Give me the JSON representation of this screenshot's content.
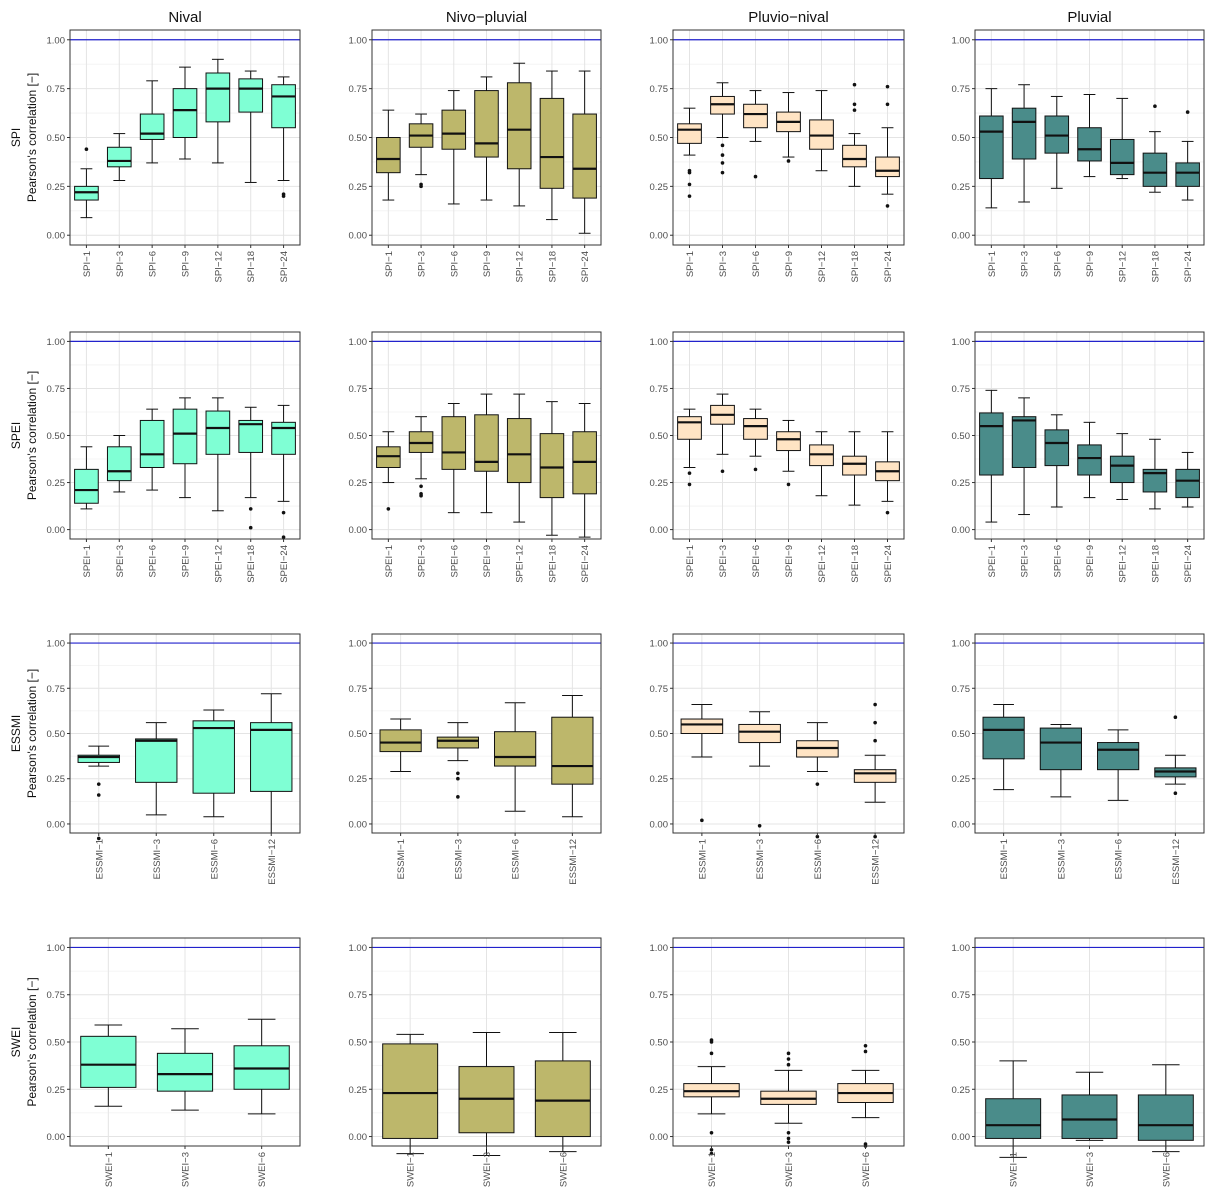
{
  "chart_data": {
    "type": "box",
    "layout": "facet grid, 4 rows (index families) x 4 columns (regimes)",
    "columns": [
      "Nival",
      "Nivo−pluvial",
      "Pluvio−nival",
      "Pluvial"
    ],
    "rows": [
      {
        "label": "SPI",
        "ylabel": "Pearson's correlation [−]"
      },
      {
        "label": "SPEI",
        "ylabel": "Pearson's correlation [−]"
      },
      {
        "label": "ESSMI",
        "ylabel": "Pearson's correlation [−]"
      },
      {
        "label": "SWEI",
        "ylabel": "Pearson's correlation [−]"
      }
    ],
    "ylim": [
      -0.05,
      1.05
    ],
    "yticks": [
      "0.00",
      "0.25",
      "0.50",
      "0.75",
      "1.00"
    ],
    "reference_line": {
      "y": 1.0,
      "color": "#2222cc"
    },
    "grid": true,
    "colors": {
      "Nival": "#7fffd4",
      "Nivo−pluvial": "#bdb76b",
      "Pluvio−nival": "#ffe4c4",
      "Pluvial": "#4a8c8a"
    },
    "panels": [
      [
        {
          "categories": [
            "SPI−1",
            "SPI−3",
            "SPI−6",
            "SPI−9",
            "SPI−12",
            "SPI−18",
            "SPI−24"
          ],
          "boxes": [
            [
              0.09,
              0.18,
              0.22,
              0.25,
              0.34
            ],
            [
              0.28,
              0.35,
              0.38,
              0.45,
              0.52
            ],
            [
              0.37,
              0.49,
              0.52,
              0.62,
              0.79
            ],
            [
              0.39,
              0.5,
              0.64,
              0.75,
              0.86
            ],
            [
              0.37,
              0.58,
              0.75,
              0.83,
              0.9
            ],
            [
              0.27,
              0.63,
              0.75,
              0.8,
              0.84
            ],
            [
              0.28,
              0.55,
              0.71,
              0.77,
              0.81
            ]
          ],
          "outliers": [
            [
              0.44
            ],
            [],
            [],
            [],
            [],
            [],
            [
              0.21,
              0.2
            ]
          ]
        },
        {
          "categories": [
            "SPI−1",
            "SPI−3",
            "SPI−6",
            "SPI−9",
            "SPI−12",
            "SPI−18",
            "SPI−24"
          ],
          "boxes": [
            [
              0.18,
              0.32,
              0.39,
              0.5,
              0.64
            ],
            [
              0.31,
              0.45,
              0.51,
              0.57,
              0.62
            ],
            [
              0.16,
              0.44,
              0.52,
              0.64,
              0.74
            ],
            [
              0.18,
              0.4,
              0.47,
              0.74,
              0.81
            ],
            [
              0.15,
              0.34,
              0.54,
              0.78,
              0.88
            ],
            [
              0.08,
              0.24,
              0.4,
              0.7,
              0.84
            ],
            [
              0.01,
              0.19,
              0.34,
              0.62,
              0.84
            ]
          ],
          "outliers": [
            [],
            [
              0.26,
              0.25
            ],
            [],
            [],
            [],
            [],
            []
          ]
        },
        {
          "categories": [
            "SPI−1",
            "SPI−3",
            "SPI−6",
            "SPI−9",
            "SPI−12",
            "SPI−18",
            "SPI−24"
          ],
          "boxes": [
            [
              0.41,
              0.47,
              0.54,
              0.57,
              0.65
            ],
            [
              0.5,
              0.62,
              0.67,
              0.71,
              0.78
            ],
            [
              0.48,
              0.55,
              0.62,
              0.67,
              0.74
            ],
            [
              0.4,
              0.53,
              0.58,
              0.63,
              0.73
            ],
            [
              0.33,
              0.44,
              0.51,
              0.59,
              0.74
            ],
            [
              0.25,
              0.35,
              0.39,
              0.46,
              0.52
            ],
            [
              0.21,
              0.3,
              0.33,
              0.4,
              0.55
            ]
          ],
          "outliers": [
            [
              0.33,
              0.32,
              0.26,
              0.2
            ],
            [
              0.46,
              0.41,
              0.37,
              0.32
            ],
            [
              0.3
            ],
            [
              0.38
            ],
            [],
            [
              0.77,
              0.67,
              0.64
            ],
            [
              0.76,
              0.67,
              0.15
            ]
          ]
        },
        {
          "categories": [
            "SPI−1",
            "SPI−3",
            "SPI−6",
            "SPI−9",
            "SPI−12",
            "SPI−18",
            "SPI−24"
          ],
          "boxes": [
            [
              0.14,
              0.29,
              0.53,
              0.61,
              0.75
            ],
            [
              0.17,
              0.39,
              0.58,
              0.65,
              0.77
            ],
            [
              0.24,
              0.42,
              0.51,
              0.61,
              0.71
            ],
            [
              0.3,
              0.38,
              0.44,
              0.55,
              0.72
            ],
            [
              0.29,
              0.31,
              0.37,
              0.49,
              0.7
            ],
            [
              0.22,
              0.25,
              0.32,
              0.42,
              0.53
            ],
            [
              0.18,
              0.25,
              0.32,
              0.37,
              0.48
            ]
          ],
          "outliers": [
            [],
            [],
            [],
            [],
            [],
            [
              0.66
            ],
            [
              0.63
            ]
          ]
        }
      ],
      [
        {
          "categories": [
            "SPEI−1",
            "SPEI−3",
            "SPEI−6",
            "SPEI−9",
            "SPEI−12",
            "SPEI−18",
            "SPEI−24"
          ],
          "boxes": [
            [
              0.11,
              0.14,
              0.21,
              0.32,
              0.44
            ],
            [
              0.2,
              0.26,
              0.31,
              0.44,
              0.5
            ],
            [
              0.21,
              0.33,
              0.4,
              0.58,
              0.64
            ],
            [
              0.17,
              0.35,
              0.51,
              0.64,
              0.7
            ],
            [
              0.1,
              0.4,
              0.54,
              0.63,
              0.7
            ],
            [
              0.17,
              0.41,
              0.56,
              0.58,
              0.65
            ],
            [
              0.15,
              0.4,
              0.54,
              0.57,
              0.66
            ]
          ],
          "outliers": [
            [],
            [],
            [],
            [],
            [],
            [
              0.11,
              0.01
            ],
            [
              0.09,
              -0.04
            ]
          ]
        },
        {
          "categories": [
            "SPEI−1",
            "SPEI−3",
            "SPEI−6",
            "SPEI−9",
            "SPEI−12",
            "SPEI−18",
            "SPEI−24"
          ],
          "boxes": [
            [
              0.25,
              0.33,
              0.39,
              0.44,
              0.52
            ],
            [
              0.27,
              0.41,
              0.46,
              0.52,
              0.6
            ],
            [
              0.09,
              0.32,
              0.41,
              0.6,
              0.67
            ],
            [
              0.09,
              0.31,
              0.36,
              0.61,
              0.72
            ],
            [
              0.04,
              0.25,
              0.4,
              0.59,
              0.72
            ],
            [
              -0.03,
              0.17,
              0.33,
              0.51,
              0.68
            ],
            [
              -0.04,
              0.19,
              0.36,
              0.52,
              0.67
            ]
          ],
          "outliers": [
            [
              0.11
            ],
            [
              0.23,
              0.19,
              0.18
            ],
            [],
            [],
            [],
            [],
            []
          ]
        },
        {
          "categories": [
            "SPEI−1",
            "SPEI−3",
            "SPEI−6",
            "SPEI−9",
            "SPEI−12",
            "SPEI−18",
            "SPEI−24"
          ],
          "boxes": [
            [
              0.33,
              0.48,
              0.57,
              0.6,
              0.64
            ],
            [
              0.4,
              0.56,
              0.61,
              0.66,
              0.72
            ],
            [
              0.39,
              0.48,
              0.55,
              0.59,
              0.64
            ],
            [
              0.31,
              0.42,
              0.48,
              0.52,
              0.58
            ],
            [
              0.18,
              0.34,
              0.4,
              0.45,
              0.52
            ],
            [
              0.13,
              0.29,
              0.35,
              0.39,
              0.52
            ],
            [
              0.15,
              0.26,
              0.31,
              0.36,
              0.52
            ]
          ],
          "outliers": [
            [
              0.3,
              0.24
            ],
            [
              0.31
            ],
            [
              0.32
            ],
            [
              0.24
            ],
            [],
            [],
            [
              0.09
            ]
          ]
        },
        {
          "categories": [
            "SPEI−1",
            "SPEI−3",
            "SPEI−6",
            "SPEI−9",
            "SPEI−12",
            "SPEI−18",
            "SPEI−24"
          ],
          "boxes": [
            [
              0.04,
              0.29,
              0.55,
              0.62,
              0.74
            ],
            [
              0.08,
              0.33,
              0.58,
              0.6,
              0.7
            ],
            [
              0.12,
              0.34,
              0.46,
              0.53,
              0.61
            ],
            [
              0.17,
              0.29,
              0.38,
              0.45,
              0.57
            ],
            [
              0.16,
              0.25,
              0.34,
              0.39,
              0.51
            ],
            [
              0.11,
              0.2,
              0.3,
              0.32,
              0.48
            ],
            [
              0.12,
              0.17,
              0.26,
              0.32,
              0.41
            ]
          ],
          "outliers": [
            [],
            [],
            [],
            [],
            [],
            [],
            []
          ]
        }
      ],
      [
        {
          "categories": [
            "ESSMI−1",
            "ESSMI−3",
            "ESSMI−6",
            "ESSMI−12"
          ],
          "boxes": [
            [
              0.32,
              0.34,
              0.37,
              0.38,
              0.43
            ],
            [
              0.05,
              0.23,
              0.46,
              0.47,
              0.56
            ],
            [
              0.04,
              0.17,
              0.53,
              0.57,
              0.63
            ],
            [
              -0.05,
              0.18,
              0.52,
              0.56,
              0.72
            ]
          ],
          "outliers": [
            [
              0.22,
              0.16,
              -0.08
            ],
            [],
            [],
            []
          ]
        },
        {
          "categories": [
            "ESSMI−1",
            "ESSMI−3",
            "ESSMI−6",
            "ESSMI−12"
          ],
          "boxes": [
            [
              0.29,
              0.4,
              0.45,
              0.52,
              0.58
            ],
            [
              0.35,
              0.42,
              0.46,
              0.48,
              0.56
            ],
            [
              0.07,
              0.32,
              0.37,
              0.51,
              0.67
            ],
            [
              0.04,
              0.22,
              0.32,
              0.59,
              0.71
            ]
          ],
          "outliers": [
            [],
            [
              0.28,
              0.25,
              0.15
            ],
            [],
            []
          ]
        },
        {
          "categories": [
            "ESSMI−1",
            "ESSMI−3",
            "ESSMI−6",
            "ESSMI−12"
          ],
          "boxes": [
            [
              0.37,
              0.5,
              0.55,
              0.58,
              0.66
            ],
            [
              0.32,
              0.45,
              0.51,
              0.55,
              0.62
            ],
            [
              0.29,
              0.37,
              0.42,
              0.46,
              0.56
            ],
            [
              0.12,
              0.23,
              0.28,
              0.3,
              0.38
            ]
          ],
          "outliers": [
            [
              0.02
            ],
            [
              -0.01
            ],
            [
              0.22,
              -0.07
            ],
            [
              0.66,
              0.56,
              0.46,
              -0.07
            ]
          ]
        },
        {
          "categories": [
            "ESSMI−1",
            "ESSMI−3",
            "ESSMI−6",
            "ESSMI−12"
          ],
          "boxes": [
            [
              0.19,
              0.36,
              0.52,
              0.59,
              0.66
            ],
            [
              0.15,
              0.3,
              0.45,
              0.53,
              0.55
            ],
            [
              0.13,
              0.3,
              0.41,
              0.45,
              0.52
            ],
            [
              0.22,
              0.26,
              0.29,
              0.31,
              0.38
            ]
          ],
          "outliers": [
            [],
            [],
            [],
            [
              0.59,
              0.17
            ]
          ]
        }
      ],
      [
        {
          "categories": [
            "SWEI−1",
            "SWEI−3",
            "SWEI−6"
          ],
          "boxes": [
            [
              0.16,
              0.26,
              0.38,
              0.53,
              0.59
            ],
            [
              0.14,
              0.24,
              0.33,
              0.44,
              0.57
            ],
            [
              0.12,
              0.25,
              0.36,
              0.48,
              0.62
            ]
          ],
          "outliers": [
            [],
            [],
            []
          ]
        },
        {
          "categories": [
            "SWEI−1",
            "SWEI−3",
            "SWEI−6"
          ],
          "boxes": [
            [
              -0.09,
              -0.01,
              0.23,
              0.49,
              0.54
            ],
            [
              -0.1,
              0.02,
              0.2,
              0.37,
              0.55
            ],
            [
              -0.08,
              0.0,
              0.19,
              0.4,
              0.55
            ]
          ],
          "outliers": [
            [],
            [],
            []
          ]
        },
        {
          "categories": [
            "SWEI−1",
            "SWEI−3",
            "SWEI−6"
          ],
          "boxes": [
            [
              0.12,
              0.21,
              0.24,
              0.28,
              0.37
            ],
            [
              0.07,
              0.17,
              0.2,
              0.24,
              0.35
            ],
            [
              0.1,
              0.18,
              0.23,
              0.28,
              0.35
            ]
          ],
          "outliers": [
            [
              0.51,
              0.5,
              0.44,
              0.02,
              -0.07,
              -0.09
            ],
            [
              0.44,
              0.41,
              0.38,
              0.02,
              -0.01,
              -0.03
            ],
            [
              0.48,
              0.45,
              -0.04,
              -0.05
            ]
          ]
        },
        {
          "categories": [
            "SWEI−1",
            "SWEI−3",
            "SWEI−6"
          ],
          "boxes": [
            [
              -0.11,
              -0.01,
              0.06,
              0.2,
              0.4
            ],
            [
              -0.02,
              -0.01,
              0.09,
              0.22,
              0.34
            ],
            [
              -0.08,
              -0.02,
              0.06,
              0.22,
              0.38
            ]
          ],
          "outliers": [
            [],
            [],
            []
          ]
        }
      ]
    ]
  }
}
